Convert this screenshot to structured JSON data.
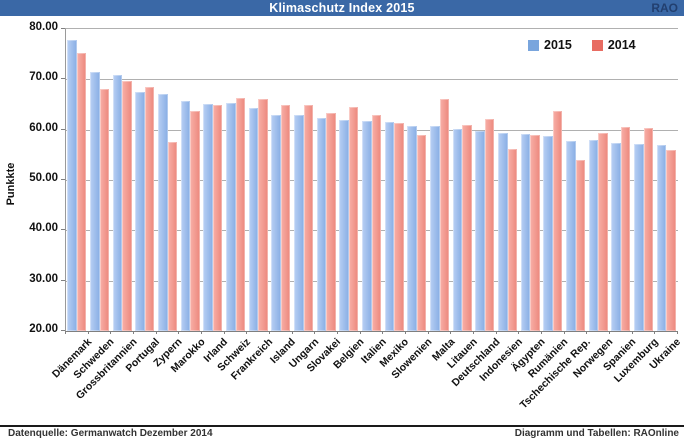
{
  "header": {
    "title": "Klimaschutz Index 2015",
    "brand": "RAO"
  },
  "footer": {
    "left": "Datenquelle: Germanwatch Dezember 2014",
    "right": "Diagramm und Tabellen: RAOnline"
  },
  "colors": {
    "header_bg": "#3a68a6",
    "header_title": "#ffffff",
    "brand_text": "#223f6f",
    "grid": "#b0b0b0",
    "axis": "#808080"
  },
  "chart_data": {
    "type": "bar",
    "title": "Klimaschutz Index 2015",
    "xlabel": "",
    "ylabel": "Punkkte",
    "ylim": [
      20,
      80
    ],
    "yticks": [
      "80.00",
      "70.00",
      "60.00",
      "50.00",
      "40.00",
      "30.00",
      "20.00"
    ],
    "grid": true,
    "legend_position": "top-right-inside",
    "categories": [
      "Dänemark",
      "Schweden",
      "Grossbritannien",
      "Portugal",
      "Zypern",
      "Marokko",
      "Irland",
      "Schweiz",
      "Frankreich",
      "Island",
      "Ungarn",
      "Slovakei",
      "Belgien",
      "Italien",
      "Mexiko",
      "Slowenien",
      "Malta",
      "Litauen",
      "Deutschland",
      "Indonesien",
      "Ägypten",
      "Rumänien",
      "Tschechische Rep.",
      "Norwegen",
      "Spanien",
      "Luxemburg",
      "Ukraine"
    ],
    "series": [
      {
        "name": "2015",
        "color": "#79a5dd",
        "color_light": "#b9d0f4",
        "color_dark": "#87ade4",
        "values": [
          77.8,
          71.4,
          70.8,
          67.5,
          67.0,
          65.6,
          65.2,
          65.3,
          64.3,
          63.0,
          62.9,
          62.4,
          62.0,
          61.8,
          61.6,
          60.7,
          60.7,
          60.1,
          59.7,
          59.4,
          59.2,
          58.8,
          57.8,
          57.9,
          57.3,
          57.1,
          56.9
        ]
      },
      {
        "name": "2014",
        "color": "#e86c62",
        "color_light": "#f8b0a8",
        "color_dark": "#ec877c",
        "values": [
          75.3,
          68.0,
          69.6,
          68.4,
          57.6,
          63.7,
          64.9,
          66.3,
          66.0,
          64.9,
          65.0,
          63.3,
          64.6,
          62.9,
          61.4,
          59.0,
          66.0,
          61.0,
          62.1,
          56.2,
          59.0,
          63.7,
          53.9,
          59.4,
          60.5,
          60.3,
          56.0
        ]
      }
    ]
  }
}
